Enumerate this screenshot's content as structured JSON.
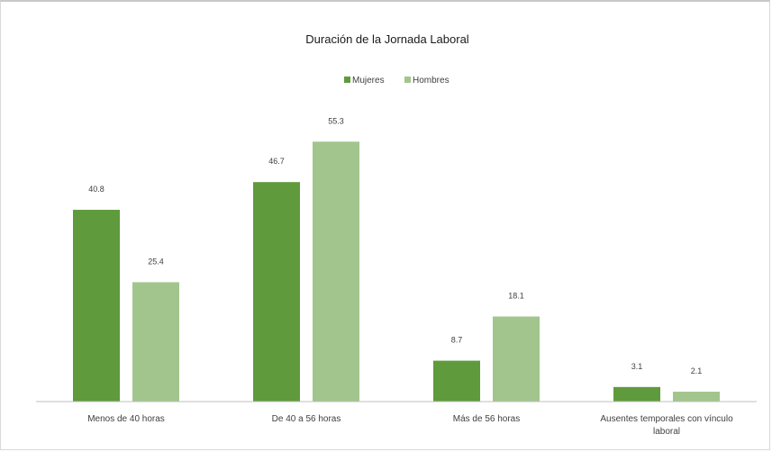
{
  "chart_data": {
    "type": "bar",
    "title": "Duración de la Jornada Laboral",
    "xlabel": "",
    "ylabel": "",
    "ylim": [
      0,
      60
    ],
    "grid": false,
    "legend_position": "top-center",
    "categories": [
      [
        "Menos de 40 horas"
      ],
      [
        "De 40 a 56 horas"
      ],
      [
        "Más de 56 horas"
      ],
      [
        "Ausentes temporales con vínculo",
        "laboral"
      ]
    ],
    "series": [
      {
        "name": "Mujeres",
        "color": "#5f9a3c",
        "values": [
          40.8,
          46.7,
          8.7,
          3.1
        ],
        "labels": [
          "40.8",
          "46.7",
          "8.7",
          "3.1"
        ]
      },
      {
        "name": "Hombres",
        "color": "#a2c58d",
        "values": [
          25.4,
          55.3,
          18.1,
          2.1
        ],
        "labels": [
          "25.4",
          "55.3",
          "18.1",
          "2.1"
        ]
      }
    ]
  }
}
